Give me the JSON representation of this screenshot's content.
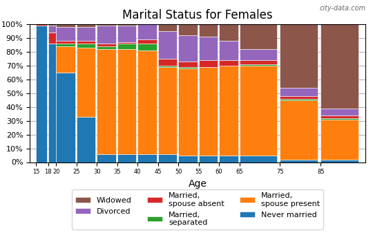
{
  "chart_data": {
    "type": "bar",
    "stacked": true,
    "title": "Marital Status for Females",
    "x_label": "Age",
    "x": [
      15,
      18,
      20,
      25,
      30,
      35,
      40,
      45,
      50,
      55,
      60,
      65,
      75,
      85
    ],
    "xlim": [
      13.5,
      96
    ],
    "xticks": [
      15,
      18,
      20,
      25,
      30,
      35,
      40,
      45,
      50,
      55,
      60,
      65,
      75,
      85
    ],
    "ylim": [
      0,
      100
    ],
    "yticks": [
      {
        "value": 0,
        "label": "0%"
      },
      {
        "value": 10,
        "label": "10%"
      },
      {
        "value": 20,
        "label": "20%"
      },
      {
        "value": 30,
        "label": "30%"
      },
      {
        "value": 40,
        "label": "40%"
      },
      {
        "value": 50,
        "label": "50%"
      },
      {
        "value": 60,
        "label": "60%"
      },
      {
        "value": 70,
        "label": "70%"
      },
      {
        "value": 80,
        "label": "80%"
      },
      {
        "value": 90,
        "label": "90%"
      },
      {
        "value": 100,
        "label": "100%"
      }
    ],
    "grid": "y",
    "legend": "upper center",
    "series": [
      {
        "name": "Never married",
        "values": [
          99,
          86,
          65,
          33,
          6,
          6,
          6,
          6,
          5,
          5,
          5,
          5,
          2,
          2
        ]
      },
      {
        "name": "Married,\nspouse present",
        "values": [
          0,
          0,
          19,
          50,
          76,
          76,
          75,
          63,
          63,
          64,
          65,
          65,
          43,
          29
        ]
      },
      {
        "name": "Married,\nseparated",
        "values": [
          0,
          0,
          2,
          3,
          2,
          4,
          5,
          1,
          1,
          0,
          0,
          1,
          1,
          1
        ]
      },
      {
        "name": "Married,\nspouse absent",
        "values": [
          1,
          8,
          2,
          2,
          2,
          1,
          3,
          5,
          4,
          5,
          4,
          3,
          2,
          2
        ]
      },
      {
        "name": "Divorced",
        "values": [
          0,
          5,
          10,
          10,
          13,
          12,
          11,
          20,
          19,
          17,
          14,
          8,
          6,
          5
        ]
      },
      {
        "name": "Widowed",
        "values": [
          0,
          1,
          2,
          2,
          1,
          1,
          0,
          5,
          8,
          9,
          12,
          18,
          46,
          61
        ]
      }
    ],
    "annotations": [
      {
        "text": "city-data.com"
      }
    ]
  }
}
